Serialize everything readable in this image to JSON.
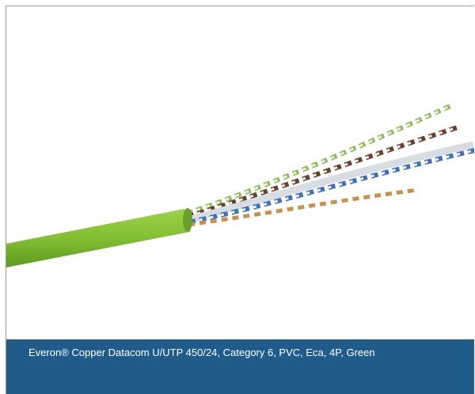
{
  "caption": "Everon® Copper Datacom U/UTP 450/24, Category 6, PVC, Eca, 4P, Green"
}
